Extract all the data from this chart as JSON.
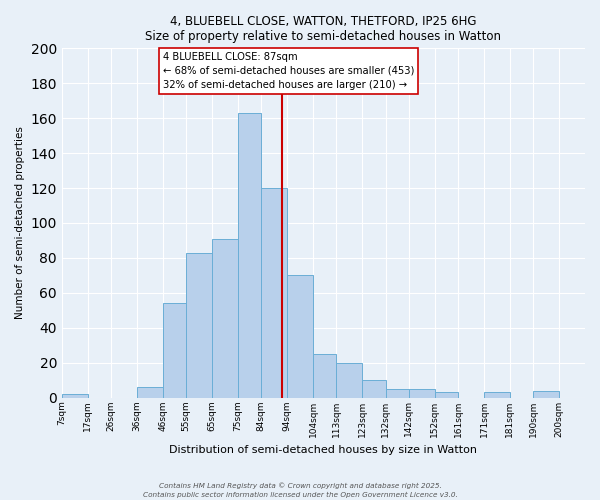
{
  "title": "4, BLUEBELL CLOSE, WATTON, THETFORD, IP25 6HG",
  "subtitle": "Size of property relative to semi-detached houses in Watton",
  "xlabel": "Distribution of semi-detached houses by size in Watton",
  "ylabel": "Number of semi-detached properties",
  "bar_labels": [
    "7sqm",
    "17sqm",
    "26sqm",
    "36sqm",
    "46sqm",
    "55sqm",
    "65sqm",
    "75sqm",
    "84sqm",
    "94sqm",
    "104sqm",
    "113sqm",
    "123sqm",
    "132sqm",
    "142sqm",
    "152sqm",
    "161sqm",
    "171sqm",
    "181sqm",
    "190sqm",
    "200sqm"
  ],
  "bin_edges": [
    2,
    12,
    21,
    31,
    41,
    50,
    60,
    70,
    79,
    89,
    99,
    108,
    118,
    127,
    136,
    146,
    155,
    165,
    175,
    184,
    194,
    204
  ],
  "bar_heights": [
    2,
    0,
    0,
    6,
    54,
    83,
    91,
    163,
    120,
    70,
    25,
    20,
    10,
    5,
    5,
    3,
    0,
    3,
    0,
    4,
    0
  ],
  "bar_color": "#b8d0eb",
  "bar_edge_color": "#6aaed6",
  "property_size": 87,
  "vline_color": "#cc0000",
  "annotation_title": "4 BLUEBELL CLOSE: 87sqm",
  "annotation_line1": "← 68% of semi-detached houses are smaller (453)",
  "annotation_line2": "32% of semi-detached houses are larger (210) →",
  "annotation_box_color": "#ffffff",
  "annotation_border_color": "#cc0000",
  "ylim": [
    0,
    200
  ],
  "yticks": [
    0,
    20,
    40,
    60,
    80,
    100,
    120,
    140,
    160,
    180,
    200
  ],
  "bg_color": "#e8f0f8",
  "grid_color": "#ffffff",
  "footer1": "Contains HM Land Registry data © Crown copyright and database right 2025.",
  "footer2": "Contains public sector information licensed under the Open Government Licence v3.0."
}
